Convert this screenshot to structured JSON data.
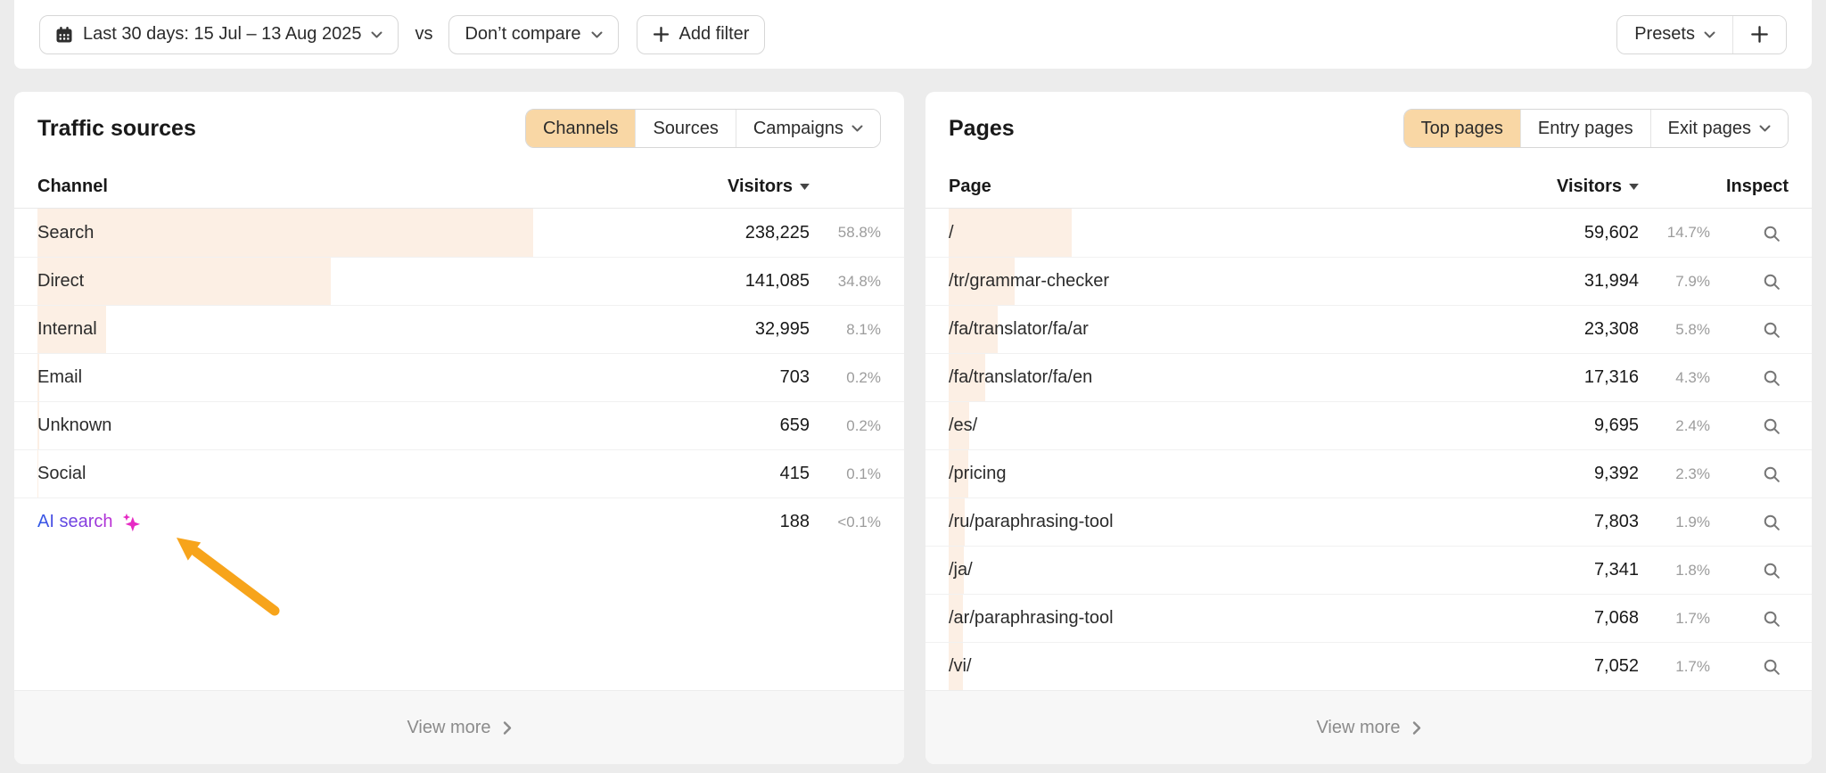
{
  "toolbar": {
    "date_range_label": "Last 30 days: 15 Jul – 13 Aug 2025",
    "vs_label": "vs",
    "compare_label": "Don’t compare",
    "add_filter_label": "Add filter",
    "presets_label": "Presets"
  },
  "icons": {
    "date_button": "calendar-icon",
    "dropdowns": "chevron-down-icon",
    "add_filter": "plus-icon",
    "presets_add": "plus-icon",
    "visitors_sort": "sort-desc-triangle-icon",
    "inspect": "magnifier-icon",
    "view_more": "chevron-right-icon",
    "ai_search": "sparkles-icon",
    "annotation": "orange-arrow"
  },
  "colors": {
    "page_background": "#ececec",
    "card_background": "#ffffff",
    "active_tab": "#f9d7a5",
    "row_bar": "#fcefe4",
    "share_text": "#9c9c9c",
    "annotation_arrow": "#f7a41b",
    "ai_gradient_start": "#2e59e6",
    "ai_gradient_end": "#bd2fd4",
    "sparkles": "#e62bc4"
  },
  "traffic_sources": {
    "title": "Traffic sources",
    "tabs": [
      {
        "label": "Channels",
        "active": true,
        "has_dropdown": false
      },
      {
        "label": "Sources",
        "active": false,
        "has_dropdown": false
      },
      {
        "label": "Campaigns",
        "active": false,
        "has_dropdown": true
      }
    ],
    "columns": {
      "channel": "Channel",
      "visitors": "Visitors"
    },
    "rows": [
      {
        "channel": "Search",
        "visitors": "238,225",
        "share": "58.8%",
        "bar_pct": 58.8,
        "is_ai": false
      },
      {
        "channel": "Direct",
        "visitors": "141,085",
        "share": "34.8%",
        "bar_pct": 34.8,
        "is_ai": false
      },
      {
        "channel": "Internal",
        "visitors": "32,995",
        "share": "8.1%",
        "bar_pct": 8.1,
        "is_ai": false
      },
      {
        "channel": "Email",
        "visitors": "703",
        "share": "0.2%",
        "bar_pct": 0.2,
        "is_ai": false
      },
      {
        "channel": "Unknown",
        "visitors": "659",
        "share": "0.2%",
        "bar_pct": 0.2,
        "is_ai": false
      },
      {
        "channel": "Social",
        "visitors": "415",
        "share": "0.1%",
        "bar_pct": 0.1,
        "is_ai": false
      },
      {
        "channel": "AI search",
        "visitors": "188",
        "share": "<0.1%",
        "bar_pct": 0,
        "is_ai": true
      }
    ],
    "view_more_label": "View more"
  },
  "pages": {
    "title": "Pages",
    "tabs": [
      {
        "label": "Top pages",
        "active": true,
        "has_dropdown": false
      },
      {
        "label": "Entry pages",
        "active": false,
        "has_dropdown": false
      },
      {
        "label": "Exit pages",
        "active": false,
        "has_dropdown": true
      }
    ],
    "columns": {
      "page": "Page",
      "visitors": "Visitors",
      "inspect": "Inspect"
    },
    "rows": [
      {
        "page": "/",
        "visitors": "59,602",
        "share": "14.7%",
        "bar_pct": 14.7
      },
      {
        "page": "/tr/grammar-checker",
        "visitors": "31,994",
        "share": "7.9%",
        "bar_pct": 7.9
      },
      {
        "page": "/fa/translator/fa/ar",
        "visitors": "23,308",
        "share": "5.8%",
        "bar_pct": 5.8
      },
      {
        "page": "/fa/translator/fa/en",
        "visitors": "17,316",
        "share": "4.3%",
        "bar_pct": 4.3
      },
      {
        "page": "/es/",
        "visitors": "9,695",
        "share": "2.4%",
        "bar_pct": 2.4
      },
      {
        "page": "/pricing",
        "visitors": "9,392",
        "share": "2.3%",
        "bar_pct": 2.3
      },
      {
        "page": "/ru/paraphrasing-tool",
        "visitors": "7,803",
        "share": "1.9%",
        "bar_pct": 1.9
      },
      {
        "page": "/ja/",
        "visitors": "7,341",
        "share": "1.8%",
        "bar_pct": 1.8
      },
      {
        "page": "/ar/paraphrasing-tool",
        "visitors": "7,068",
        "share": "1.7%",
        "bar_pct": 1.7
      },
      {
        "page": "/vi/",
        "visitors": "7,052",
        "share": "1.7%",
        "bar_pct": 1.7
      }
    ],
    "view_more_label": "View more"
  }
}
